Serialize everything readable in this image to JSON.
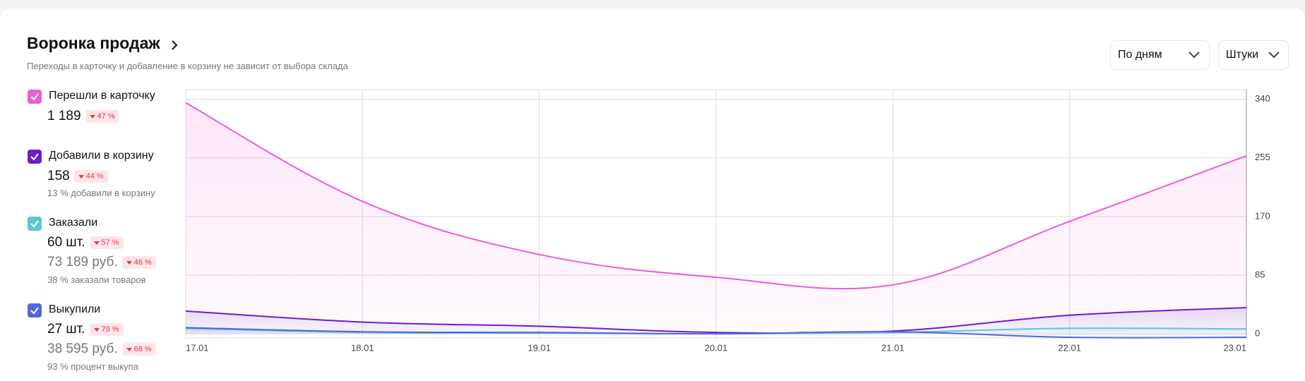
{
  "header": {
    "title": "Воронка продаж",
    "subtitle": "Переходы в карточку и добавление в корзину не зависит от выбора склада"
  },
  "controls": {
    "period": "По дням",
    "unit": "Штуки"
  },
  "metrics": [
    {
      "value": "1 189",
      "change": "47 %"
    },
    {
      "value": "158",
      "change": "44 %",
      "note": "13 % добавили в корзину"
    },
    {
      "value": "60 шт.",
      "change": "57 %",
      "value2": "73 189 руб.",
      "change2": "46 %",
      "note": "38 % заказали товаров"
    },
    {
      "value": "27 шт.",
      "change": "79 %",
      "value2": "38 595 руб.",
      "change2": "68 %",
      "note": "93 % процент выкупа"
    }
  ],
  "chart_data": {
    "type": "line",
    "categories": [
      "17.01",
      "18.01",
      "19.01",
      "20.01",
      "21.01",
      "22.01",
      "23.01"
    ],
    "series": [
      {
        "name": "Перешли в карточку",
        "color": "#f05bd0",
        "values": [
          335,
          192,
          115,
          82,
          71,
          163,
          258
        ]
      },
      {
        "name": "Добавили в корзину",
        "color": "#6a1fc9",
        "values": [
          33,
          17,
          11,
          2,
          4,
          27,
          38
        ]
      },
      {
        "name": "Заказали",
        "color": "#5cc8cf",
        "values": [
          8,
          2,
          1,
          0,
          2,
          8,
          7
        ]
      },
      {
        "name": "Выкупили",
        "color": "#5566dd",
        "values": [
          9,
          3,
          2,
          0,
          3,
          -5,
          -5
        ]
      }
    ],
    "ylim": [
      -6,
      354
    ],
    "yticks": [
      0,
      85,
      170,
      255,
      340
    ],
    "grid": true
  }
}
